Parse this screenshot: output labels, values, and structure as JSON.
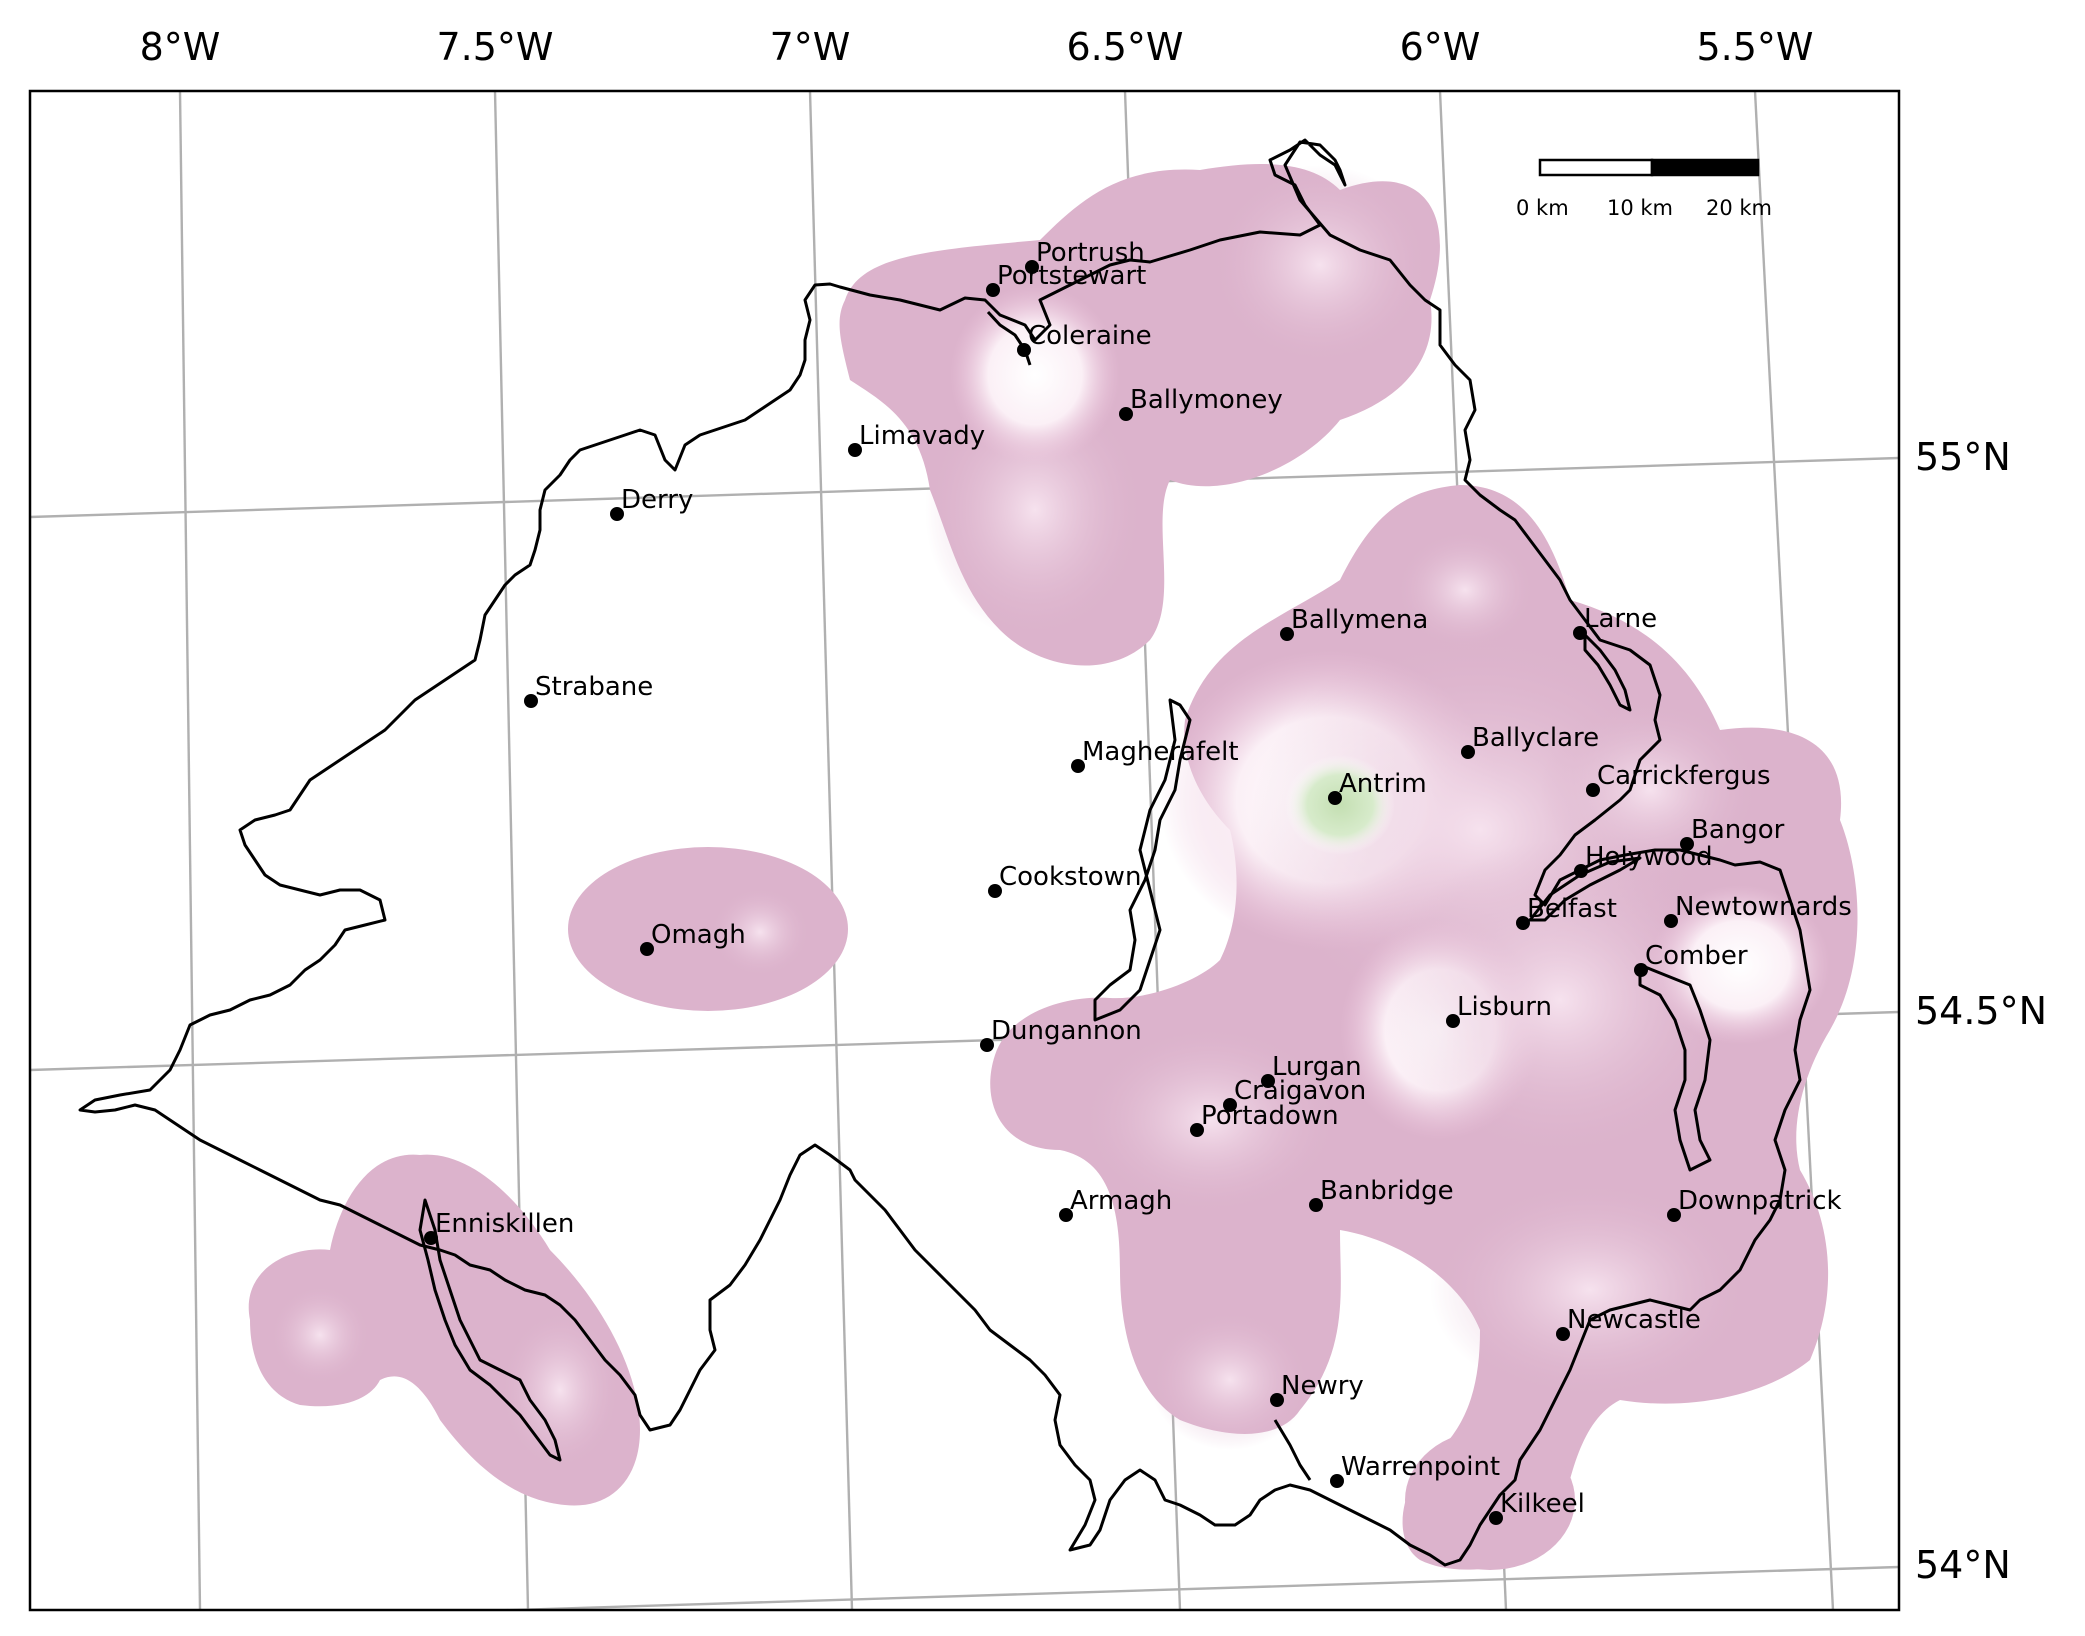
{
  "map": {
    "title": "",
    "graticule": {
      "longitude_labels": [
        "8°W",
        "7.5°W",
        "7°W",
        "6.5°W",
        "6°W",
        "5.5°W"
      ],
      "latitude_labels": [
        "55°N",
        "54.5°N",
        "54°N"
      ]
    },
    "scale_bar": {
      "labels": [
        "0 km",
        "10 km",
        "20 km"
      ]
    },
    "colors": {
      "density_low": "#dcb3cc",
      "density_mid": "#f3d9e8",
      "density_peak": "#ffffff",
      "density_max": "#c9e3b9",
      "coastline": "#000000",
      "gridline": "#b0b0b0"
    },
    "cities": [
      {
        "name": "Portrush"
      },
      {
        "name": "Portstewart"
      },
      {
        "name": "Coleraine"
      },
      {
        "name": "Ballymoney"
      },
      {
        "name": "Limavady"
      },
      {
        "name": "Derry"
      },
      {
        "name": "Strabane"
      },
      {
        "name": "Ballymena"
      },
      {
        "name": "Larne"
      },
      {
        "name": "Magherafelt"
      },
      {
        "name": "Ballyclare"
      },
      {
        "name": "Antrim"
      },
      {
        "name": "Carrickfergus"
      },
      {
        "name": "Bangor"
      },
      {
        "name": "Holywood"
      },
      {
        "name": "Cookstown"
      },
      {
        "name": "Omagh"
      },
      {
        "name": "Belfast"
      },
      {
        "name": "Newtownards"
      },
      {
        "name": "Comber"
      },
      {
        "name": "Lisburn"
      },
      {
        "name": "Dungannon"
      },
      {
        "name": "Lurgan"
      },
      {
        "name": "Craigavon"
      },
      {
        "name": "Portadown"
      },
      {
        "name": "Banbridge"
      },
      {
        "name": "Armagh"
      },
      {
        "name": "Downpatrick"
      },
      {
        "name": "Enniskillen"
      },
      {
        "name": "Newcastle"
      },
      {
        "name": "Newry"
      },
      {
        "name": "Warrenpoint"
      },
      {
        "name": "Kilkeel"
      }
    ]
  }
}
